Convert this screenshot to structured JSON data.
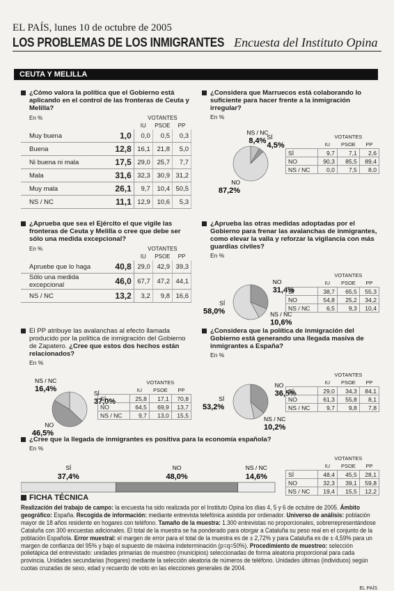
{
  "header": {
    "date": "EL PAÍS, lunes 10 de octubre de 2005",
    "title": "LOS PROBLEMAS DE LOS INMIGRANTES",
    "subtitle": "Encuesta del Instituto Opina"
  },
  "section": "CEUTA Y MELILLA",
  "questions": [
    {
      "text": "¿Cómo valora la política que el Gobierno está aplicando en el control de las fronteras de Ceuta y Melilla?",
      "unit": "En %",
      "group": "VOTANTES",
      "columns": [
        "IU",
        "PSOE",
        "PP"
      ],
      "rows": [
        [
          "Muy buena",
          "1,0",
          "0,0",
          "0,5",
          "0,3"
        ],
        [
          "Buena",
          "12,8",
          "16,1",
          "21,8",
          "5,0"
        ],
        [
          "Ni buena ni mala",
          "17,5",
          "29,0",
          "25,7",
          "7,7"
        ],
        [
          "Mala",
          "31,6",
          "32,3",
          "30,9",
          "31,2"
        ],
        [
          "Muy mala",
          "26,1",
          "9,7",
          "10,4",
          "50,5"
        ],
        [
          "NS / NC",
          "11,1",
          "12,9",
          "10,6",
          "5,3"
        ]
      ]
    },
    {
      "text": "¿Considera que Marruecos está colaborando lo suficiente para hacer frente a la inmigración irregular?",
      "unit": "En %",
      "group": "VOTANTES",
      "columns": [
        "IU",
        "PSOE",
        "PP"
      ],
      "chart": {
        "type": "pie",
        "slices": [
          {
            "name": "NS / NC",
            "value": 8.4,
            "label": "8,4%",
            "color": "#c4c4c4"
          },
          {
            "name": "SÍ",
            "value": 4.5,
            "label": "4,5%",
            "color": "#9a9a9a"
          },
          {
            "name": "NO",
            "value": 87.2,
            "label": "87,2%",
            "color": "#dcdcdc"
          }
        ]
      },
      "rows": [
        [
          "SÍ",
          "9,7",
          "7,1",
          "2,6"
        ],
        [
          "NO",
          "90,3",
          "85,5",
          "89,4"
        ],
        [
          "NS / NC",
          "0,0",
          "7,5",
          "8,0"
        ]
      ]
    },
    {
      "text": "¿Aprueba que sea el Ejército el que vigile las fronteras de Ceuta y Melilla o cree que debe ser sólo una medida excepcional?",
      "unit": "En %",
      "group": "VOTANTES",
      "columns": [
        "IU",
        "PSOE",
        "PP"
      ],
      "rows": [
        [
          "Apruebe que lo haga",
          "40,8",
          "29,0",
          "42,9",
          "39,3"
        ],
        [
          "Sólo una medida excepcional",
          "46,0",
          "67,7",
          "47,2",
          "44,1"
        ],
        [
          "NS / NC",
          "13,2",
          "3,2",
          "9,8",
          "16,6"
        ]
      ]
    },
    {
      "text": "¿Aprueba las otras medidas adoptadas por el Gobierno para frenar las avalanchas de inmigrantes, como elevar la valla y reforzar la vigilancia con más guardias civiles?",
      "unit": "En %",
      "group": "VOTANTES",
      "columns": [
        "IU",
        "PSOE",
        "PP"
      ],
      "chart": {
        "type": "pie",
        "slices": [
          {
            "name": "NO",
            "value": 31.4,
            "label": "31,4%",
            "color": "#9a9a9a"
          },
          {
            "name": "NS / NC",
            "value": 10.6,
            "label": "10,6%",
            "color": "#c4c4c4"
          },
          {
            "name": "SÍ",
            "value": 58.0,
            "label": "58,0%",
            "color": "#dcdcdc"
          }
        ]
      },
      "rows": [
        [
          "SÍ",
          "38,7",
          "65,5",
          "55,3"
        ],
        [
          "NO",
          "54,8",
          "25,2",
          "34,2"
        ],
        [
          "NS / NC",
          "6,5",
          "9,3",
          "10,4"
        ]
      ]
    },
    {
      "intro": "El PP atribuye las avalanchas al efecto llamada producido por la política de inmigración del Gobierno de Zapatero.",
      "text": "¿Cree que estos dos hechos están relacionados?",
      "unit": "En %",
      "group": "VOTANTES",
      "columns": [
        "IU",
        "PSOE",
        "PP"
      ],
      "chart": {
        "type": "pie",
        "slices": [
          {
            "name": "SÍ",
            "value": 37.0,
            "label": "37,0%",
            "color": "#dcdcdc"
          },
          {
            "name": "NO",
            "value": 46.5,
            "label": "46,5%",
            "color": "#9a9a9a"
          },
          {
            "name": "NS / NC",
            "value": 16.4,
            "label": "16,4%",
            "color": "#c4c4c4"
          }
        ]
      },
      "rows": [
        [
          "SÍ",
          "25,8",
          "17,1",
          "70,8"
        ],
        [
          "NO",
          "64,5",
          "69,9",
          "13,7"
        ],
        [
          "NS / NC",
          "9,7",
          "13,0",
          "15,5"
        ]
      ]
    },
    {
      "text": "¿Considera que la política de inmigración del Gobierno está generando una llegada masiva de inmigrantes a España?",
      "unit": "En %",
      "group": "VOTANTES",
      "columns": [
        "IU",
        "PSOE",
        "PP"
      ],
      "chart": {
        "type": "pie",
        "slices": [
          {
            "name": "NO",
            "value": 36.5,
            "label": "36,5%",
            "color": "#9a9a9a"
          },
          {
            "name": "NS / NC",
            "value": 10.2,
            "label": "10,2%",
            "color": "#c4c4c4"
          },
          {
            "name": "SÍ",
            "value": 53.2,
            "label": "53,2%",
            "color": "#dcdcdc"
          }
        ]
      },
      "rows": [
        [
          "SÍ",
          "29,0",
          "34,3",
          "84,1"
        ],
        [
          "NO",
          "61,3",
          "55,8",
          "8,1"
        ],
        [
          "NS / NC",
          "9,7",
          "9,8",
          "7,8"
        ]
      ]
    },
    {
      "text": "¿Cree que la llegada de inmigrantes es positiva para la economía española?",
      "unit": "En %",
      "group": "VOTANTES",
      "columns": [
        "IU",
        "PSOE",
        "PP"
      ],
      "chart": {
        "type": "stacked_bar",
        "slices": [
          {
            "name": "SÍ",
            "value": 37.4,
            "label": "37,4%",
            "color": "#e2e2e2"
          },
          {
            "name": "NO",
            "value": 48.0,
            "label": "48,0%",
            "color": "#8c8c8c"
          },
          {
            "name": "NS / NC",
            "value": 14.6,
            "label": "14,6%",
            "color": "#ececec"
          }
        ]
      },
      "rows": [
        [
          "SÍ",
          "48,4",
          "45,5",
          "28,1"
        ],
        [
          "NO",
          "32,3",
          "39,1",
          "59,8"
        ],
        [
          "NS / NC",
          "19,4",
          "15,5",
          "12,2"
        ]
      ]
    }
  ],
  "ficha": {
    "heading": "FICHA TÉCNICA",
    "items": [
      {
        "label": "Realización del trabajo de campo:",
        "text": "la encuesta ha sido realizada por el Instituto Opina los días 4, 5 y 6 de octubre de 2005."
      },
      {
        "label": "Ámbito geográfico:",
        "text": "España."
      },
      {
        "label": "Recogida de información:",
        "text": "mediante entrevista telefónica asistida por ordenador."
      },
      {
        "label": "Universo de análisis:",
        "text": "población mayor de 18 años residente en hogares con teléfono."
      },
      {
        "label": "Tamaño de la muestra:",
        "text": "1.300 entrevistas no proporcionales, sobrerrepresentándose Cataluña con 300 encuestas adicionales. El total de la muestra se ha ponderado para otorgar a Cataluña su peso real en el conjunto de la población Española."
      },
      {
        "label": "Error muestral:",
        "text": "el margen de error para el total de la muestra es de ± 2,72% y para Cataluña es de ± 4,59% para un margen de confianza del 95% y bajo el supuesto de máxima indeterminación (p=q=50%)."
      },
      {
        "label": "Procedimiento de muestreo:",
        "text": "selección polietápica del entrevistado: unidades primarias de muestreo (municipios) seleccionadas de forma aleatoria proporcional para cada provincia. Unidades secundarias (hogares) mediante la selección aleatoria de números de teléfono. Unidades últimas (individuos) según cuotas cruzadas de sexo, edad y recuerdo de voto en las elecciones generales de 2004."
      }
    ]
  },
  "footer": "EL PAÍS"
}
